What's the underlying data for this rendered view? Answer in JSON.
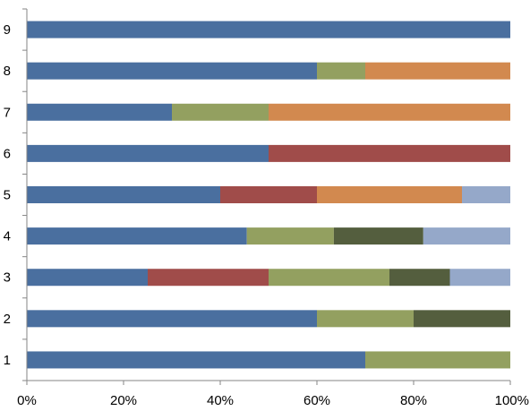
{
  "chart_data": {
    "type": "bar",
    "orientation": "horizontal",
    "stacked": true,
    "stacking": "percent",
    "categories": [
      "1",
      "2",
      "3",
      "4",
      "5",
      "6",
      "7",
      "8",
      "9"
    ],
    "x_ticks": [
      "0%",
      "20%",
      "40%",
      "60%",
      "80%",
      "100%"
    ],
    "xlim": [
      0,
      100
    ],
    "grid": false,
    "legend": "none",
    "series": [
      {
        "color": "#4a6f9f",
        "values": [
          70,
          60,
          25,
          45.5,
          40,
          50,
          30,
          60,
          100
        ]
      },
      {
        "color": "#a04c4a",
        "values": [
          0,
          0,
          25,
          0,
          20,
          50,
          0,
          0,
          0
        ]
      },
      {
        "color": "#93a060",
        "values": [
          30,
          20,
          25,
          18,
          0,
          0,
          20,
          10,
          0
        ]
      },
      {
        "color": "#d2894f",
        "values": [
          0,
          0,
          0,
          0,
          30,
          0,
          50,
          30,
          0
        ]
      },
      {
        "color": "#545e3e",
        "values": [
          0,
          20,
          12.5,
          18.5,
          0,
          0,
          0,
          0,
          0
        ]
      },
      {
        "color": "#95a8c9",
        "values": [
          0,
          0,
          12.5,
          18,
          10,
          0,
          0,
          0,
          0
        ]
      }
    ]
  }
}
